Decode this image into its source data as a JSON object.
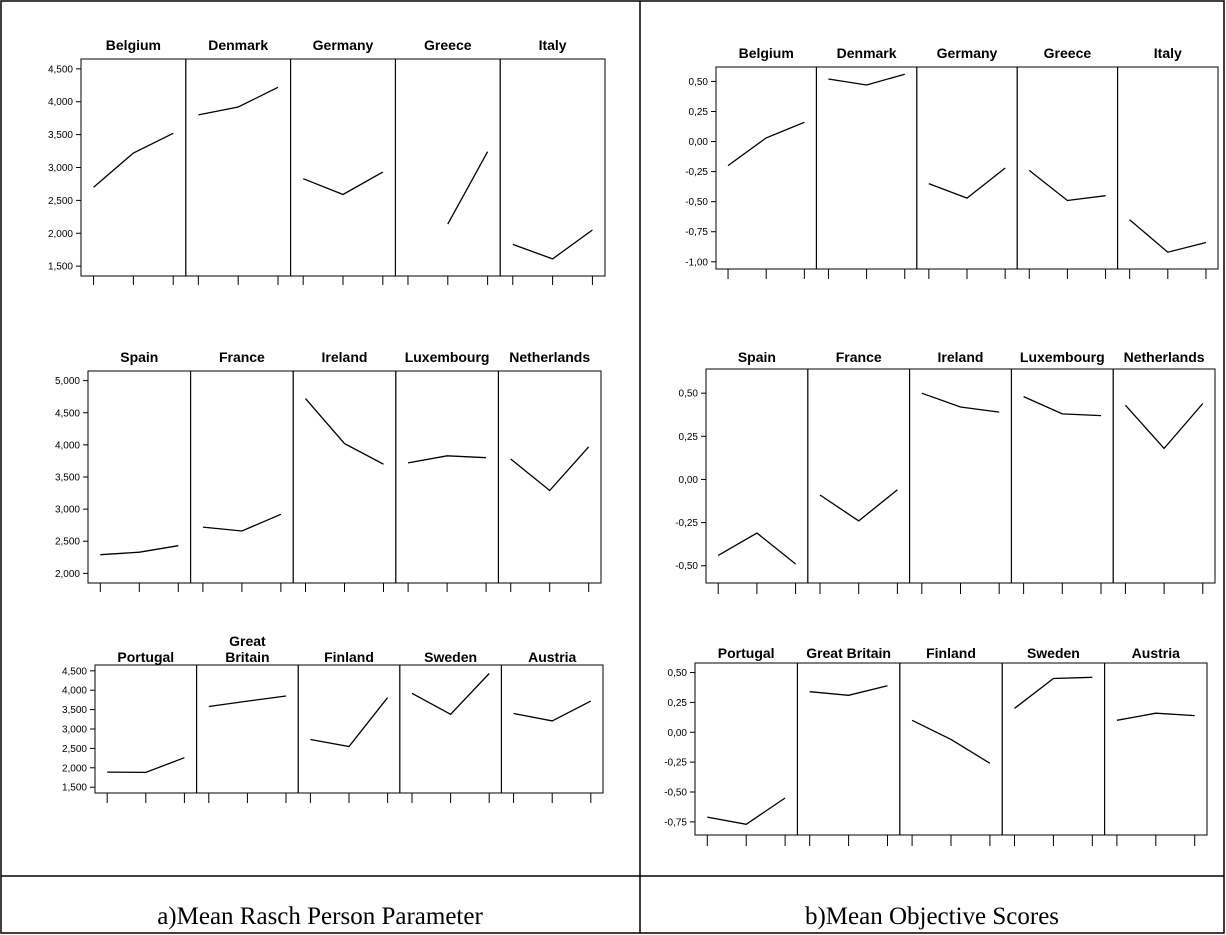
{
  "captions": {
    "left": "a)Mean Rasch Person Parameter",
    "right": "b)Mean Objective Scores"
  },
  "chart_data": [
    {
      "type": "line",
      "panel": "a",
      "row": 1,
      "ylim": [
        1350,
        4650
      ],
      "yticks": [
        "1,500",
        "2,000",
        "2,500",
        "3,000",
        "3,500",
        "4,000",
        "4,500"
      ],
      "ytick_values": [
        1500,
        2000,
        2500,
        3000,
        3500,
        4000,
        4500
      ],
      "series": [
        {
          "name": "Belgium",
          "values": [
            2700,
            3220,
            3520
          ]
        },
        {
          "name": "Denmark",
          "values": [
            3800,
            3920,
            4220
          ]
        },
        {
          "name": "Germany",
          "values": [
            2830,
            2590,
            2930
          ]
        },
        {
          "name": "Greece",
          "values": [
            2140,
            3240
          ]
        },
        {
          "name": "Italy",
          "values": [
            1830,
            1610,
            2050
          ]
        }
      ]
    },
    {
      "type": "line",
      "panel": "a",
      "row": 2,
      "ylim": [
        1850,
        5150
      ],
      "yticks": [
        "2,000",
        "2,500",
        "3,000",
        "3,500",
        "4,000",
        "4,500",
        "5,000"
      ],
      "ytick_values": [
        2000,
        2500,
        3000,
        3500,
        4000,
        4500,
        5000
      ],
      "series": [
        {
          "name": "Spain",
          "values": [
            2290,
            2330,
            2430
          ]
        },
        {
          "name": "France",
          "values": [
            2720,
            2660,
            2920
          ]
        },
        {
          "name": "Ireland",
          "values": [
            4720,
            4020,
            3700
          ]
        },
        {
          "name": "Luxembourg",
          "values": [
            3720,
            3830,
            3800
          ]
        },
        {
          "name": "Netherlands",
          "values": [
            3780,
            3290,
            3970
          ]
        }
      ]
    },
    {
      "type": "line",
      "panel": "a",
      "row": 3,
      "ylim": [
        1350,
        4650
      ],
      "yticks": [
        "1,500",
        "2,000",
        "2,500",
        "3,000",
        "3,500",
        "4,000",
        "4,500"
      ],
      "ytick_values": [
        1500,
        2000,
        2500,
        3000,
        3500,
        4000,
        4500
      ],
      "series": [
        {
          "name": "Portugal",
          "values": [
            1890,
            1880,
            2260
          ]
        },
        {
          "name": "Great Britain",
          "values": [
            3580,
            3720,
            3850
          ]
        },
        {
          "name": "Finland",
          "values": [
            2730,
            2550,
            3810
          ]
        },
        {
          "name": "Sweden",
          "values": [
            3920,
            3380,
            4430
          ]
        },
        {
          "name": "Austria",
          "values": [
            3400,
            3210,
            3720
          ]
        }
      ]
    },
    {
      "type": "line",
      "panel": "b",
      "row": 1,
      "ylim": [
        -1.06,
        0.62
      ],
      "yticks": [
        "0,50",
        "0,25",
        "0,00",
        "-0,25",
        "-0,50",
        "-0,75",
        "-1,00"
      ],
      "ytick_values": [
        0.5,
        0.25,
        0,
        -0.25,
        -0.5,
        -0.75,
        -1.0
      ],
      "series": [
        {
          "name": "Belgium",
          "values": [
            -0.2,
            0.03,
            0.16
          ]
        },
        {
          "name": "Denmark",
          "values": [
            0.52,
            0.47,
            0.56
          ]
        },
        {
          "name": "Germany",
          "values": [
            -0.35,
            -0.47,
            -0.22
          ]
        },
        {
          "name": "Greece",
          "values": [
            -0.24,
            -0.49,
            -0.45
          ]
        },
        {
          "name": "Italy",
          "values": [
            -0.65,
            -0.92,
            -0.84
          ]
        }
      ]
    },
    {
      "type": "line",
      "panel": "b",
      "row": 2,
      "ylim": [
        -0.6,
        0.64
      ],
      "yticks": [
        "0,50",
        "0,25",
        "0,00",
        "-0,25",
        "-0,50"
      ],
      "ytick_values": [
        0.5,
        0.25,
        0,
        -0.25,
        -0.5
      ],
      "series": [
        {
          "name": "Spain",
          "values": [
            -0.44,
            -0.31,
            -0.49
          ]
        },
        {
          "name": "France",
          "values": [
            -0.09,
            -0.24,
            -0.06
          ]
        },
        {
          "name": "Ireland",
          "values": [
            0.5,
            0.42,
            0.39
          ]
        },
        {
          "name": "Luxembourg",
          "values": [
            0.48,
            0.38,
            0.37
          ]
        },
        {
          "name": "Netherlands",
          "values": [
            0.43,
            0.18,
            0.44
          ]
        }
      ]
    },
    {
      "type": "line",
      "panel": "b",
      "row": 3,
      "ylim": [
        -0.86,
        0.58
      ],
      "yticks": [
        "0,50",
        "0,25",
        "0,00",
        "-0,25",
        "-0,50",
        "-0,75"
      ],
      "ytick_values": [
        0.5,
        0.25,
        0,
        -0.25,
        -0.5,
        -0.75
      ],
      "series": [
        {
          "name": "Portugal",
          "values": [
            -0.71,
            -0.77,
            -0.55
          ]
        },
        {
          "name": "Great Britain",
          "values": [
            0.34,
            0.31,
            0.39
          ]
        },
        {
          "name": "Finland",
          "values": [
            0.1,
            -0.06,
            -0.26
          ]
        },
        {
          "name": "Sweden",
          "values": [
            0.2,
            0.45,
            0.46
          ]
        },
        {
          "name": "Austria",
          "values": [
            0.1,
            0.16,
            0.14
          ]
        }
      ]
    }
  ]
}
